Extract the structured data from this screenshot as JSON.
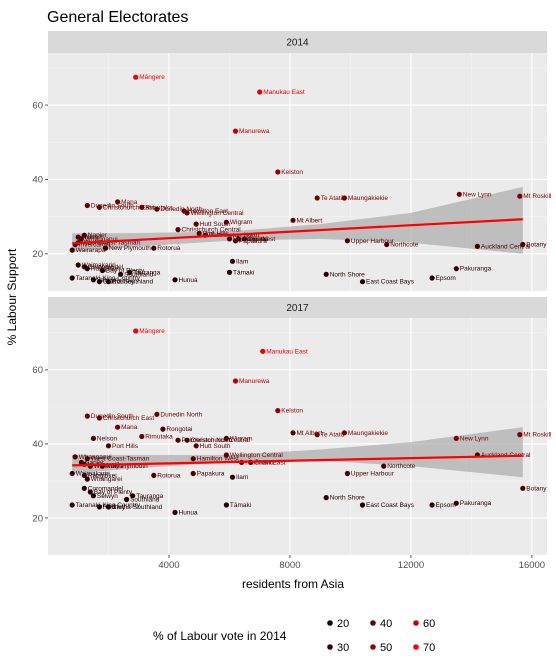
{
  "chart_data": {
    "type": "scatter",
    "title": "General Electorates",
    "xlabel": "residents from Asia",
    "ylabel": "% Labour Support",
    "xlim": [
      0,
      16500
    ],
    "ylim": [
      10,
      74
    ],
    "x_ticks": [
      4000,
      8000,
      12000,
      16000
    ],
    "x_tick_labels": [
      "4000",
      "8000",
      "12000",
      "16000"
    ],
    "y_ticks": [
      20,
      40,
      60
    ],
    "y_tick_labels": [
      "20",
      "40",
      "60"
    ],
    "grid": true,
    "smoothing": "linear regression with confidence band",
    "legend": {
      "title": "% of Labour vote in 2014",
      "placement": "bottom",
      "entries": [
        {
          "label": "20",
          "value": 20,
          "color": "#1a0000"
        },
        {
          "label": "30",
          "value": 30,
          "color": "#3d0000"
        },
        {
          "label": "40",
          "value": 40,
          "color": "#6a0000"
        },
        {
          "label": "50",
          "value": 50,
          "color": "#990000"
        },
        {
          "label": "60",
          "value": 60,
          "color": "#cc0000"
        },
        {
          "label": "70",
          "value": 70,
          "color": "#ff0000"
        }
      ]
    },
    "colors": {
      "low": "#1a0000",
      "high": "#ff0000",
      "fit_line": "#ff0000",
      "band": "#999999",
      "panel": "#ebebeb",
      "strip": "#d9d9d9"
    },
    "panels": [
      {
        "strip": "2014",
        "fit": {
          "x0": 800,
          "y0": 22.8,
          "x1": 15700,
          "y1": 29.3
        },
        "band": {
          "lower": [
            20.5,
            22.0,
            23.5,
            24.0,
            23.0,
            20.0
          ],
          "upper": [
            25.5,
            25.6,
            26.0,
            28.0,
            31.0,
            38.0
          ],
          "x": [
            800,
            3000,
            6000,
            9000,
            12000,
            15700
          ]
        },
        "points": [
          {
            "label": "Māngere",
            "x": 2900,
            "y": 67.5,
            "c": 67.5
          },
          {
            "label": "Manukau East",
            "x": 7000,
            "y": 63.5,
            "c": 63.5
          },
          {
            "label": "Manurewa",
            "x": 6200,
            "y": 53,
            "c": 53
          },
          {
            "label": "Kelston",
            "x": 7600,
            "y": 42,
            "c": 42
          },
          {
            "label": "New Lynn",
            "x": 13600,
            "y": 36,
            "c": 36
          },
          {
            "label": "Mt Roskill",
            "x": 15600,
            "y": 35.5,
            "c": 35.5
          },
          {
            "label": "Te Atatū",
            "x": 8900,
            "y": 35,
            "c": 35
          },
          {
            "label": "Maungakiekie",
            "x": 9800,
            "y": 35,
            "c": 35
          },
          {
            "label": "Mana",
            "x": 2300,
            "y": 34,
            "c": 34
          },
          {
            "label": "Dunedin South",
            "x": 1300,
            "y": 33,
            "c": 33
          },
          {
            "label": "Christchurch East",
            "x": 1700,
            "y": 32.5,
            "c": 32.5
          },
          {
            "label": "Rimutaka",
            "x": 3100,
            "y": 32.5,
            "c": 32.5
          },
          {
            "label": "Dunedin North",
            "x": 3600,
            "y": 32,
            "c": 32
          },
          {
            "label": "Hamilton East",
            "x": 4500,
            "y": 31.5,
            "c": 31.5
          },
          {
            "label": "Wellington Central",
            "x": 4600,
            "y": 31,
            "c": 31
          },
          {
            "label": "Mt Albert",
            "x": 8100,
            "y": 29,
            "c": 29
          },
          {
            "label": "Wigram",
            "x": 5900,
            "y": 28.5,
            "c": 28.5
          },
          {
            "label": "Hutt South",
            "x": 4900,
            "y": 28,
            "c": 28
          },
          {
            "label": "Christchurch Central",
            "x": 4300,
            "y": 26.5,
            "c": 26.5
          },
          {
            "label": "Port Hills",
            "x": 5000,
            "y": 25.5,
            "c": 25.5
          },
          {
            "label": "Palmerston North",
            "x": 5200,
            "y": 25,
            "c": 25
          },
          {
            "label": "Napier",
            "x": 1200,
            "y": 25,
            "c": 25
          },
          {
            "label": "Nelson",
            "x": 1000,
            "y": 24.5,
            "c": 24.5
          },
          {
            "label": "Whanganui",
            "x": 1100,
            "y": 24,
            "c": 24
          },
          {
            "label": "Hamilton West",
            "x": 6000,
            "y": 24,
            "c": 24
          },
          {
            "label": "Rongotai",
            "x": 6300,
            "y": 24,
            "c": 24
          },
          {
            "label": "Ōhāriu",
            "x": 6500,
            "y": 24,
            "c": 24
          },
          {
            "label": "Papakura",
            "x": 6200,
            "y": 23.5,
            "c": 23.5
          },
          {
            "label": "Upper Harbour",
            "x": 9900,
            "y": 23.5,
            "c": 23.5
          },
          {
            "label": "West Coast-Tasman",
            "x": 1000,
            "y": 23,
            "c": 23
          },
          {
            "label": "Invercargill",
            "x": 900,
            "y": 22.5,
            "c": 22.5
          },
          {
            "label": "Northcote",
            "x": 11200,
            "y": 22.5,
            "c": 22.5
          },
          {
            "label": "Botany",
            "x": 15700,
            "y": 22.5,
            "c": 22.5
          },
          {
            "label": "Auckland Central",
            "x": 14200,
            "y": 22,
            "c": 22
          },
          {
            "label": "New Plymouth",
            "x": 1900,
            "y": 21.5,
            "c": 21.5
          },
          {
            "label": "Rotorua",
            "x": 3500,
            "y": 21.5,
            "c": 21.5
          },
          {
            "label": "Wairarapa",
            "x": 800,
            "y": 21,
            "c": 21
          },
          {
            "label": "Ilam",
            "x": 6100,
            "y": 18,
            "c": 18
          },
          {
            "label": "Waimakariri",
            "x": 1000,
            "y": 17,
            "c": 17
          },
          {
            "label": "Coromandel",
            "x": 1200,
            "y": 16.5,
            "c": 16.5
          },
          {
            "label": "Pakuranga",
            "x": 13500,
            "y": 16,
            "c": 16
          },
          {
            "label": "Rangitīkei",
            "x": 1300,
            "y": 16,
            "c": 16
          },
          {
            "label": "Bay of Plenty",
            "x": 1800,
            "y": 15.5,
            "c": 15.5
          },
          {
            "label": "Tauranga",
            "x": 2700,
            "y": 15,
            "c": 15
          },
          {
            "label": "Tāmaki",
            "x": 6000,
            "y": 15,
            "c": 15
          },
          {
            "label": "North Shore",
            "x": 9200,
            "y": 14.5,
            "c": 14.5
          },
          {
            "label": "Southland",
            "x": 2400,
            "y": 14.5,
            "c": 14.5
          },
          {
            "label": "Epsom",
            "x": 12700,
            "y": 13.5,
            "c": 13.5
          },
          {
            "label": "Taranaki-King Country",
            "x": 800,
            "y": 13.5,
            "c": 13.5
          },
          {
            "label": "Hunua",
            "x": 4200,
            "y": 13,
            "c": 13
          },
          {
            "label": "Selwyn",
            "x": 1500,
            "y": 13,
            "c": 13
          },
          {
            "label": "Clutha-Southland",
            "x": 1700,
            "y": 12.5,
            "c": 12.5
          },
          {
            "label": "Rodney",
            "x": 2000,
            "y": 12.5,
            "c": 12.5
          },
          {
            "label": "East Coast Bays",
            "x": 10400,
            "y": 12.5,
            "c": 12.5
          }
        ]
      },
      {
        "strip": "2017",
        "fit": {
          "x0": 800,
          "y0": 34.2,
          "x1": 15700,
          "y1": 36.8
        },
        "band": {
          "lower": [
            32.0,
            33.5,
            35.0,
            35.5,
            34.0,
            31.0
          ],
          "upper": [
            37.0,
            37.0,
            37.0,
            38.5,
            40.5,
            44.5
          ],
          "x": [
            800,
            3000,
            6000,
            9000,
            12000,
            15700
          ]
        },
        "points": [
          {
            "label": "Māngere",
            "x": 2900,
            "y": 70.5,
            "c": 67.5
          },
          {
            "label": "Manukau East",
            "x": 7100,
            "y": 65,
            "c": 63.5
          },
          {
            "label": "Manurewa",
            "x": 6200,
            "y": 57,
            "c": 53
          },
          {
            "label": "Kelston",
            "x": 7600,
            "y": 49,
            "c": 42
          },
          {
            "label": "Dunedin South",
            "x": 1300,
            "y": 47.5,
            "c": 33
          },
          {
            "label": "Dunedin North",
            "x": 3600,
            "y": 48,
            "c": 32
          },
          {
            "label": "Christchurch East",
            "x": 1700,
            "y": 47,
            "c": 32.5
          },
          {
            "label": "Mana",
            "x": 2300,
            "y": 44.5,
            "c": 34
          },
          {
            "label": "Rongotai",
            "x": 3800,
            "y": 44,
            "c": 24
          },
          {
            "label": "Mt Albert",
            "x": 8100,
            "y": 43,
            "c": 29
          },
          {
            "label": "Te Atatū",
            "x": 8900,
            "y": 42.5,
            "c": 35
          },
          {
            "label": "Maungakiekie",
            "x": 9800,
            "y": 43,
            "c": 35
          },
          {
            "label": "Mt Roskill",
            "x": 15600,
            "y": 42.5,
            "c": 35.5
          },
          {
            "label": "New Lynn",
            "x": 13500,
            "y": 41.5,
            "c": 36
          },
          {
            "label": "Rimutaka",
            "x": 3100,
            "y": 42,
            "c": 32.5
          },
          {
            "label": "Wigram",
            "x": 5900,
            "y": 41.5,
            "c": 28.5
          },
          {
            "label": "Nelson",
            "x": 1500,
            "y": 41.5,
            "c": 24.5
          },
          {
            "label": "Palmerston North",
            "x": 4300,
            "y": 41,
            "c": 25
          },
          {
            "label": "Christchurch Central",
            "x": 4600,
            "y": 41,
            "c": 26.5
          },
          {
            "label": "Hutt South",
            "x": 4900,
            "y": 39.5,
            "c": 28
          },
          {
            "label": "Port Hills",
            "x": 2000,
            "y": 39.5,
            "c": 25.5
          },
          {
            "label": "Wellington Central",
            "x": 5900,
            "y": 37,
            "c": 31
          },
          {
            "label": "Auckland Central",
            "x": 14200,
            "y": 37,
            "c": 22
          },
          {
            "label": "Hamilton West",
            "x": 4800,
            "y": 36,
            "c": 24
          },
          {
            "label": "Whanganui",
            "x": 900,
            "y": 36.5,
            "c": 24
          },
          {
            "label": "West Coast-Tasman",
            "x": 1300,
            "y": 36,
            "c": 23
          },
          {
            "label": "Hamilton East",
            "x": 6400,
            "y": 35,
            "c": 31.5
          },
          {
            "label": "Ōhāriu",
            "x": 6700,
            "y": 35,
            "c": 24
          },
          {
            "label": "Napier",
            "x": 1100,
            "y": 35,
            "c": 25
          },
          {
            "label": "Invercargill",
            "x": 1200,
            "y": 34.5,
            "c": 22.5
          },
          {
            "label": "Wairarapa",
            "x": 1400,
            "y": 34,
            "c": 21
          },
          {
            "label": "New Plymouth",
            "x": 1800,
            "y": 34,
            "c": 21.5
          },
          {
            "label": "Northcote",
            "x": 11100,
            "y": 34,
            "c": 22.5
          },
          {
            "label": "Waimakariri",
            "x": 800,
            "y": 32,
            "c": 17
          },
          {
            "label": "Upper Harbour",
            "x": 9900,
            "y": 32,
            "c": 23.5
          },
          {
            "label": "Rangitīkei",
            "x": 1200,
            "y": 31.5,
            "c": 16
          },
          {
            "label": "Rotorua",
            "x": 3500,
            "y": 31.5,
            "c": 21.5
          },
          {
            "label": "Papakura",
            "x": 4800,
            "y": 32,
            "c": 23.5
          },
          {
            "label": "Ilam",
            "x": 6100,
            "y": 31,
            "c": 18
          },
          {
            "label": "Whangarei",
            "x": 1300,
            "y": 30.5,
            "c": 20
          },
          {
            "label": "Coromandel",
            "x": 1200,
            "y": 28,
            "c": 16.5
          },
          {
            "label": "Botany",
            "x": 15700,
            "y": 28,
            "c": 22.5
          },
          {
            "label": "Bay of Plenty",
            "x": 1400,
            "y": 27,
            "c": 15.5
          },
          {
            "label": "Tauranga",
            "x": 2800,
            "y": 26,
            "c": 15
          },
          {
            "label": "Selwyn",
            "x": 1500,
            "y": 26,
            "c": 13
          },
          {
            "label": "North Shore",
            "x": 9200,
            "y": 25.5,
            "c": 14.5
          },
          {
            "label": "Southland",
            "x": 2600,
            "y": 25,
            "c": 14.5
          },
          {
            "label": "Pakuranga",
            "x": 13500,
            "y": 24,
            "c": 16
          },
          {
            "label": "Epsom",
            "x": 12700,
            "y": 23.5,
            "c": 13.5
          },
          {
            "label": "East Coast Bays",
            "x": 10400,
            "y": 23.5,
            "c": 12.5
          },
          {
            "label": "Taranaki-King Country",
            "x": 800,
            "y": 23.5,
            "c": 13.5
          },
          {
            "label": "Tāmaki",
            "x": 5900,
            "y": 23.5,
            "c": 15
          },
          {
            "label": "Rodney",
            "x": 1700,
            "y": 23,
            "c": 12.5
          },
          {
            "label": "Clutha-Southland",
            "x": 2000,
            "y": 23,
            "c": 12.5
          },
          {
            "label": "Hunua",
            "x": 4200,
            "y": 21.5,
            "c": 13
          }
        ]
      }
    ]
  }
}
